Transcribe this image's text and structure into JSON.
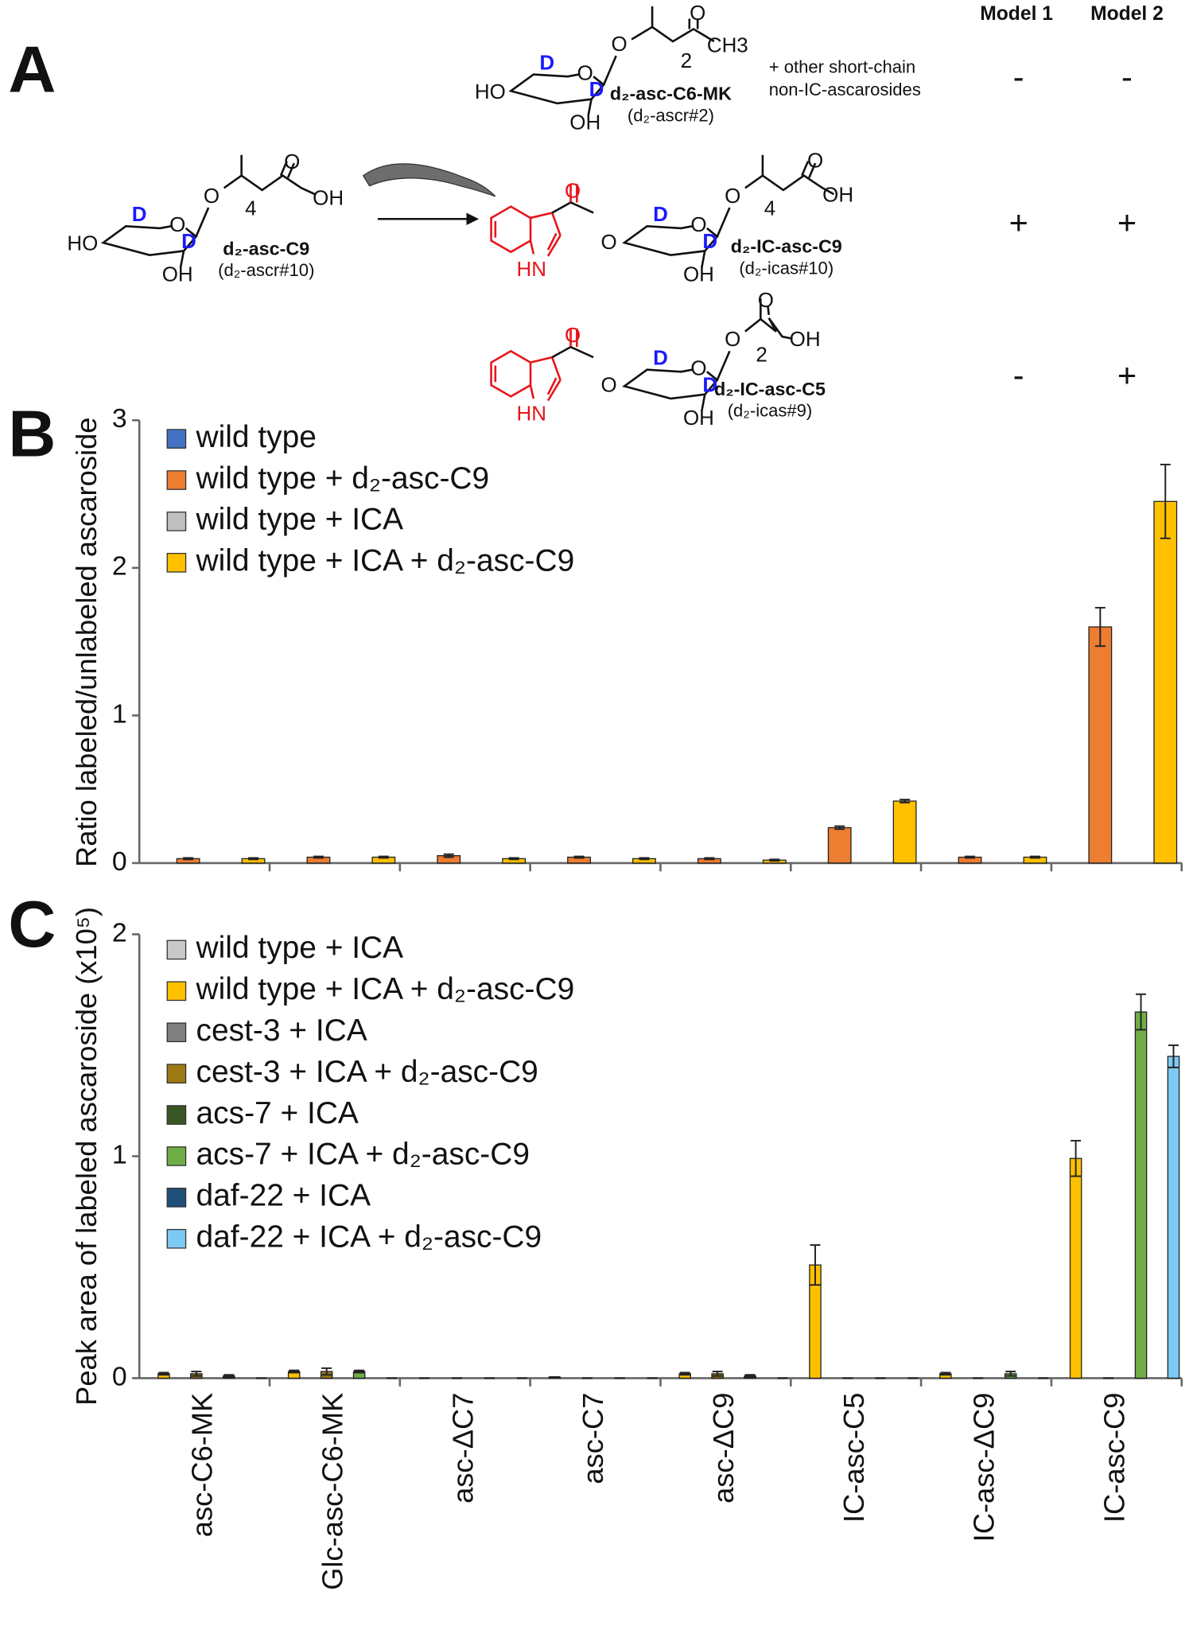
{
  "panel_a": {
    "panel_label": "A",
    "model_headers": [
      "Model 1",
      "Model 2"
    ],
    "note_lines": [
      "+ other short-chain",
      "non-IC-ascarosides"
    ],
    "compounds": [
      {
        "name": "d₂-asc-C6-MK",
        "alt_name": "(d₂-ascr#2)",
        "signs": [
          "-",
          "-"
        ],
        "atoms": [
          "O",
          "D",
          "D",
          "OH",
          "O",
          "HO",
          "O",
          "CH3",
          "2"
        ]
      },
      {
        "name": "d₂-asc-C9",
        "alt_name": "(d₂-ascr#10)",
        "atoms": [
          "O",
          "D",
          "D",
          "OH",
          "O",
          "HO",
          "O",
          "OH",
          "4"
        ]
      },
      {
        "name": "d₂-IC-asc-C9",
        "alt_name": "(d₂-icas#10)",
        "signs": [
          "+",
          "+"
        ],
        "atoms": [
          "O",
          "D",
          "D",
          "OH",
          "O",
          "O",
          "O",
          "HN",
          "O",
          "OH",
          "4"
        ]
      },
      {
        "name": "d₂-IC-asc-C5",
        "alt_name": "(d₂-icas#9)",
        "signs": [
          "-",
          "+"
        ],
        "atoms": [
          "O",
          "D",
          "D",
          "OH",
          "O",
          "O",
          "O",
          "HN",
          "O",
          "OH",
          "2"
        ]
      }
    ]
  },
  "chart_data": [
    {
      "type": "bar",
      "panel_label": "B",
      "ylabel": "Ratio labeled/unlabeled ascaroside",
      "categories": [
        null,
        null,
        null,
        null,
        null,
        null,
        null,
        null
      ],
      "ylim": [
        0,
        3
      ],
      "yticks": [
        0,
        1,
        2,
        3
      ],
      "legend": "top-left",
      "series": [
        {
          "name": "wild type",
          "color": "#4472c4",
          "values": [
            0,
            0,
            0,
            0,
            0,
            0,
            0,
            0
          ]
        },
        {
          "name": "wild type + d₂-asc-C9",
          "color": "#ed7d31",
          "values": [
            0.03,
            0.04,
            0.05,
            0.04,
            0.03,
            0.24,
            0.04,
            1.6
          ],
          "errors": [
            0.005,
            0.005,
            0.01,
            0.005,
            0.005,
            0.01,
            0.005,
            0.13
          ]
        },
        {
          "name": "wild type + ICA",
          "color": "#bfbfbf",
          "values": [
            0,
            0,
            0,
            0,
            0,
            0,
            0,
            0
          ]
        },
        {
          "name": "wild type + ICA + d₂-asc-C9",
          "color": "#ffc000",
          "values": [
            0.03,
            0.04,
            0.03,
            0.03,
            0.02,
            0.42,
            0.04,
            2.45
          ],
          "errors": [
            0.005,
            0.005,
            0.005,
            0.005,
            0.005,
            0.01,
            0.005,
            0.25
          ]
        }
      ]
    },
    {
      "type": "bar",
      "panel_label": "C",
      "ylabel": "Peak area of labeled ascaroside (x10⁵)",
      "categories": [
        "asc-C6-MK",
        "Glc-asc-C6-MK",
        "asc-ΔC7",
        "asc-C7",
        "asc-ΔC9",
        "IC-asc-C5",
        "IC-asc-ΔC9",
        "IC-asc-C9"
      ],
      "ylim": [
        0,
        2
      ],
      "yticks": [
        0,
        1,
        2
      ],
      "legend": "top-left",
      "series": [
        {
          "name": "wild type + ICA",
          "color": "#c9c9c9",
          "values": [
            0,
            0,
            0,
            0,
            0,
            0,
            0,
            0
          ]
        },
        {
          "name": "wild type + ICA + d₂-asc-C9",
          "color": "#ffc000",
          "values": [
            0.02,
            0.03,
            0,
            0.005,
            0.02,
            0.51,
            0.02,
            0.99
          ],
          "errors": [
            0.005,
            0.005,
            0,
            0,
            0.005,
            0.09,
            0.005,
            0.08
          ]
        },
        {
          "name": "cest-3 + ICA",
          "color": "#7f7f7f",
          "values": [
            0,
            0,
            0,
            0,
            0,
            0,
            0,
            0
          ]
        },
        {
          "name": "cest-3 + ICA + d₂-asc-C9",
          "color": "#9c7a14",
          "values": [
            0.02,
            0.03,
            0,
            0,
            0.02,
            0,
            0,
            0
          ],
          "errors": [
            0.01,
            0.015,
            0,
            0,
            0.01,
            0,
            0,
            0
          ]
        },
        {
          "name": "acs-7 + ICA",
          "color": "#385723",
          "values": [
            0,
            0,
            0,
            0,
            0,
            0,
            0,
            0
          ]
        },
        {
          "name": "acs-7 + ICA + d₂-asc-C9",
          "color": "#70ad47",
          "values": [
            0.01,
            0.03,
            0,
            0,
            0.01,
            0,
            0.02,
            1.65
          ],
          "errors": [
            0.005,
            0.005,
            0,
            0,
            0.005,
            0,
            0.01,
            0.08
          ]
        },
        {
          "name": "daf-22 + ICA",
          "color": "#1f4e79",
          "values": [
            0,
            0,
            0,
            0,
            0,
            0,
            0,
            0
          ]
        },
        {
          "name": "daf-22 + ICA + d₂-asc-C9",
          "color": "#7ccaf4",
          "values": [
            0,
            0,
            0,
            0,
            0,
            0,
            0,
            1.45
          ],
          "errors": [
            0,
            0,
            0,
            0,
            0,
            0,
            0,
            0.05
          ]
        }
      ]
    }
  ]
}
